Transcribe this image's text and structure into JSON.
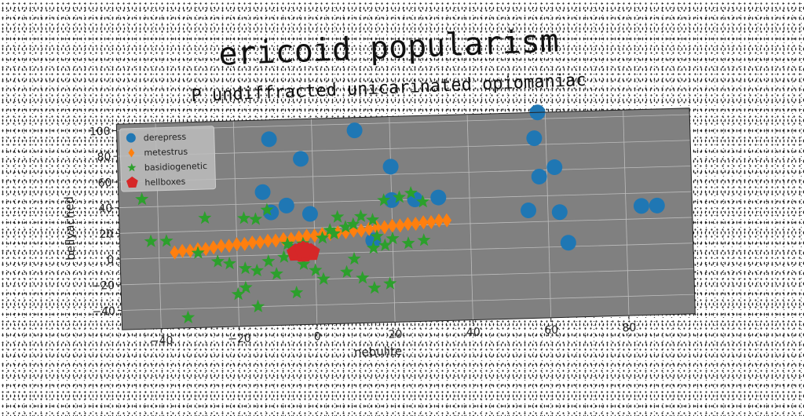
{
  "chart_data": {
    "type": "scatter",
    "title": "ericoid popularism",
    "subtitle": "P undiffracted unicarinated opiomaniac",
    "xlabel": "nebulite",
    "ylabel": "bellyached",
    "xlim": [
      -50,
      97
    ],
    "ylim": [
      -55,
      105
    ],
    "xticks": [
      -40,
      -20,
      0,
      20,
      40,
      60,
      80
    ],
    "yticks": [
      -40,
      -20,
      0,
      20,
      40,
      60,
      80,
      100
    ],
    "grid": true,
    "legend_position": "top-left",
    "series": [
      {
        "name": "derepress",
        "marker": "circle",
        "color": "#1f77b4",
        "points": [
          [
            -11,
            90
          ],
          [
            11,
            95
          ],
          [
            58,
            105
          ],
          [
            57,
            85
          ],
          [
            -3,
            74
          ],
          [
            20,
            66
          ],
          [
            62,
            62
          ],
          [
            -13,
            49
          ],
          [
            58,
            55
          ],
          [
            -7,
            38
          ],
          [
            20,
            40
          ],
          [
            26,
            40
          ],
          [
            32,
            41
          ],
          [
            -11,
            33
          ],
          [
            -1,
            31
          ],
          [
            55,
            29
          ],
          [
            63,
            27
          ],
          [
            84,
            30
          ],
          [
            88,
            30
          ],
          [
            65,
            3
          ],
          [
            15,
            9
          ],
          [
            -5,
            2
          ],
          [
            -2,
            1
          ]
        ]
      },
      {
        "name": "metestrus",
        "marker": "diamond",
        "color": "#ff7f0e",
        "points": [
          [
            -36,
            4
          ],
          [
            -34,
            5
          ],
          [
            -32,
            5
          ],
          [
            -30,
            6
          ],
          [
            -28,
            6
          ],
          [
            -26,
            7
          ],
          [
            -24,
            8
          ],
          [
            -22,
            8
          ],
          [
            -20,
            9
          ],
          [
            -18,
            9
          ],
          [
            -16,
            10
          ],
          [
            -14,
            10
          ],
          [
            -12,
            11
          ],
          [
            -10,
            11
          ],
          [
            -8,
            12
          ],
          [
            -6,
            12
          ],
          [
            -4,
            13
          ],
          [
            -2,
            14
          ],
          [
            0,
            14
          ],
          [
            2,
            15
          ],
          [
            4,
            15
          ],
          [
            6,
            16
          ],
          [
            8,
            16
          ],
          [
            10,
            17
          ],
          [
            12,
            17
          ],
          [
            14,
            18
          ],
          [
            16,
            19
          ],
          [
            18,
            19
          ],
          [
            20,
            20
          ],
          [
            22,
            20
          ],
          [
            24,
            21
          ],
          [
            26,
            21
          ],
          [
            28,
            22
          ],
          [
            30,
            22
          ],
          [
            32,
            23
          ],
          [
            34,
            23
          ]
        ]
      },
      {
        "name": "basidiogenetic",
        "marker": "star",
        "color": "#2ca02c",
        "points": [
          [
            -44,
            46
          ],
          [
            -28,
            30
          ],
          [
            -12,
            35
          ],
          [
            -18,
            29
          ],
          [
            -15,
            28
          ],
          [
            -42,
            13
          ],
          [
            -38,
            13
          ],
          [
            -25,
            -4
          ],
          [
            -22,
            -6
          ],
          [
            -18,
            -10
          ],
          [
            -15,
            -12
          ],
          [
            -12,
            -5
          ],
          [
            -10,
            -15
          ],
          [
            -8,
            -2
          ],
          [
            -6,
            5
          ],
          [
            -3,
            8
          ],
          [
            2,
            12
          ],
          [
            5,
            15
          ],
          [
            8,
            20
          ],
          [
            10,
            22
          ],
          [
            12,
            28
          ],
          [
            15,
            25
          ],
          [
            18,
            40
          ],
          [
            22,
            42
          ],
          [
            25,
            45
          ],
          [
            28,
            38
          ],
          [
            20,
            10
          ],
          [
            18,
            5
          ],
          [
            15,
            3
          ],
          [
            10,
            -5
          ],
          [
            8,
            -15
          ],
          [
            12,
            -20
          ],
          [
            15,
            -28
          ],
          [
            19,
            -25
          ],
          [
            2,
            -20
          ],
          [
            -5,
            -30
          ],
          [
            -18,
            -25
          ],
          [
            -15,
            -40
          ],
          [
            -33,
            -47
          ],
          [
            -20,
            -30
          ],
          [
            -7,
            8
          ],
          [
            4,
            18
          ],
          [
            6,
            28
          ],
          [
            24,
            6
          ],
          [
            28,
            8
          ],
          [
            -30,
            3
          ],
          [
            -3,
            -8
          ],
          [
            0,
            -13
          ],
          [
            16,
            12
          ]
        ]
      },
      {
        "name": "hellboxes",
        "marker": "pentagon",
        "color": "#d62728",
        "points": [
          [
            -4,
            2
          ],
          [
            -2,
            2
          ],
          [
            -3,
            0
          ],
          [
            -1,
            1
          ],
          [
            -5,
            1
          ],
          [
            -3,
            3
          ]
        ]
      }
    ]
  }
}
